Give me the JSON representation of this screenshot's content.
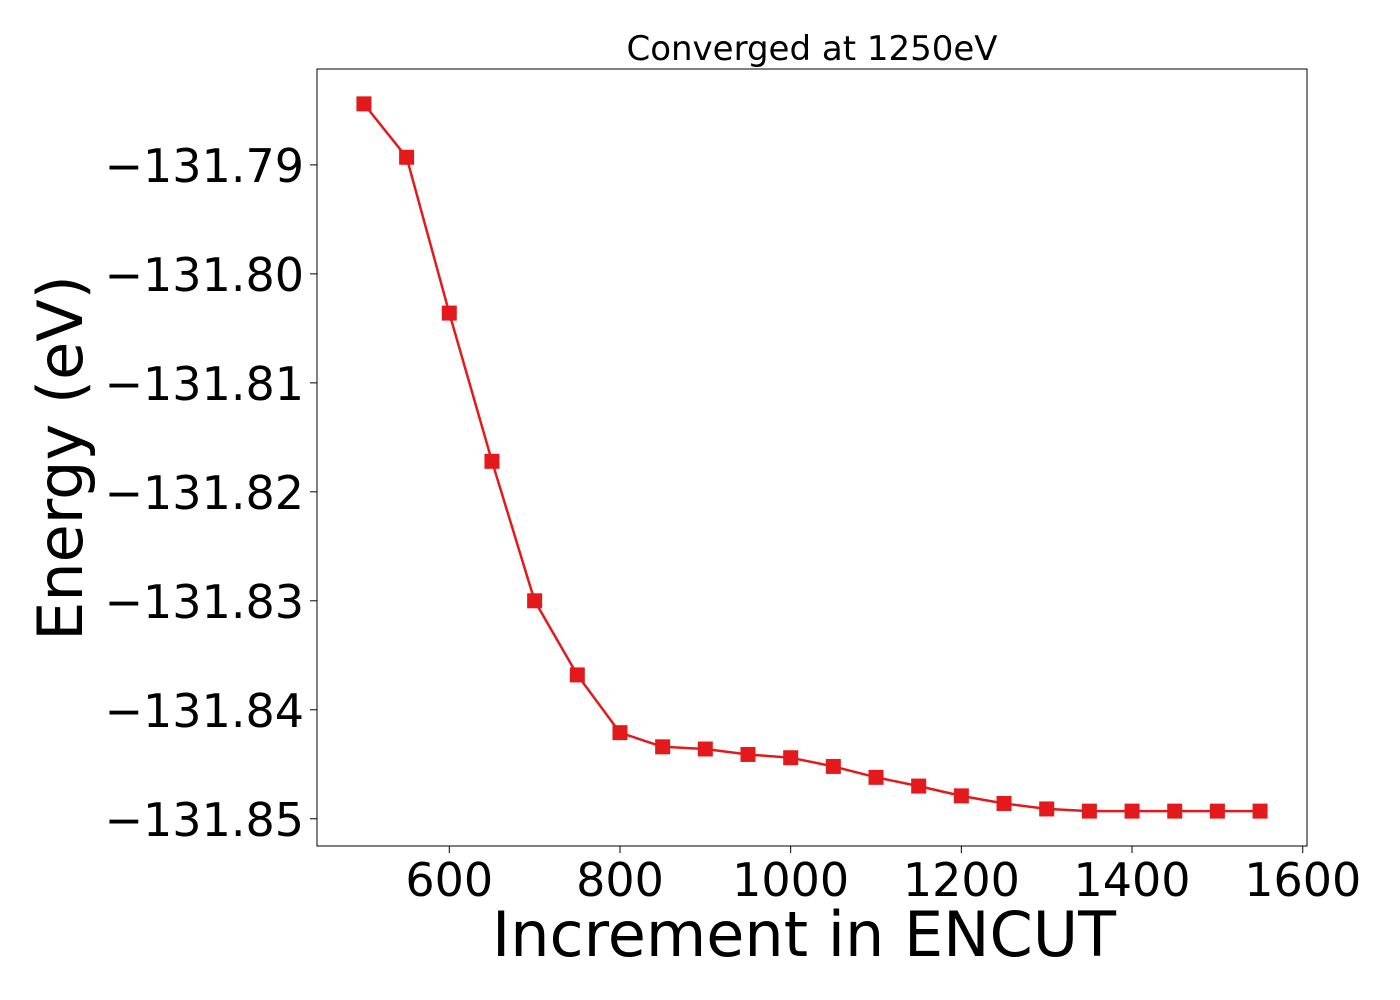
{
  "chart_data": {
    "type": "line",
    "title": "Converged at 1250eV",
    "xlabel": "Increment in ENCUT",
    "ylabel": "Energy (eV)",
    "xlim": [
      445,
      1605
    ],
    "ylim": [
      -131.8525,
      -131.7812
    ],
    "xticks": [
      600,
      800,
      1000,
      1200,
      1400,
      1600
    ],
    "xtick_labels": [
      "600",
      "800",
      "1000",
      "1200",
      "1400",
      "1600"
    ],
    "yticks": [
      -131.79,
      -131.8,
      -131.81,
      -131.82,
      -131.83,
      -131.84,
      -131.85
    ],
    "ytick_labels": [
      "−131.79",
      "−131.80",
      "−131.81",
      "−131.82",
      "−131.83",
      "−131.84",
      "−131.85"
    ],
    "grid": false,
    "legend": false,
    "series": [
      {
        "color": "#e31a1c",
        "marker": "square",
        "x": [
          500,
          550,
          600,
          650,
          700,
          750,
          800,
          850,
          900,
          950,
          1000,
          1050,
          1100,
          1150,
          1200,
          1250,
          1300,
          1350,
          1400,
          1450,
          1500,
          1550
        ],
        "y": [
          -131.7844,
          -131.7893,
          -131.8036,
          -131.8172,
          -131.83,
          -131.8368,
          -131.8421,
          -131.8434,
          -131.8436,
          -131.8441,
          -131.8444,
          -131.8452,
          -131.8462,
          -131.847,
          -131.8479,
          -131.8486,
          -131.8491,
          -131.8493,
          -131.8493,
          -131.8493,
          -131.8493,
          -131.8493
        ]
      }
    ]
  }
}
